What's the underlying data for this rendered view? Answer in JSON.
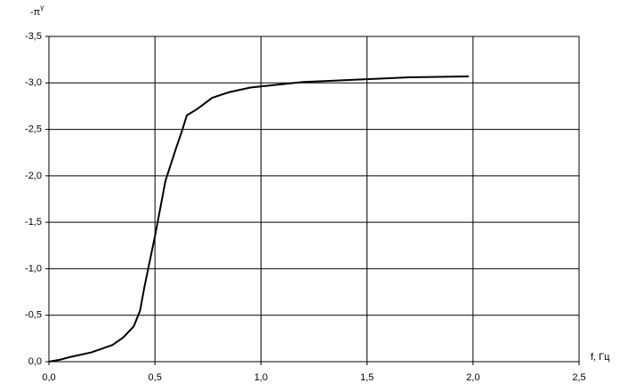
{
  "chart_data": {
    "type": "line",
    "ylabel": "-π",
    "ylabel_superscript": "γ",
    "xlabel": "f, Гц",
    "x": [
      0,
      0.05,
      0.1,
      0.2,
      0.3,
      0.35,
      0.4,
      0.43,
      0.45,
      0.5,
      0.55,
      0.6,
      0.63,
      0.65,
      0.7,
      0.77,
      0.85,
      0.95,
      1.2,
      1.5,
      1.7,
      1.98
    ],
    "series": [
      {
        "color": "#000000",
        "values": [
          0,
          -0.02,
          -0.05,
          -0.1,
          -0.18,
          -0.26,
          -0.38,
          -0.55,
          -0.8,
          -1.35,
          -1.95,
          -2.3,
          -2.5,
          -2.65,
          -2.72,
          -2.84,
          -2.9,
          -2.95,
          -3.01,
          -3.04,
          -3.06,
          -3.07
        ]
      }
    ],
    "xlim": [
      0,
      2.5
    ],
    "ylim": [
      0,
      -3.5
    ],
    "xticks": [
      {
        "value": 0,
        "label": "0,0"
      },
      {
        "value": 0.5,
        "label": "0,5"
      },
      {
        "value": 1,
        "label": "1,0"
      },
      {
        "value": 1.5,
        "label": "1,5"
      },
      {
        "value": 2,
        "label": "2,0"
      },
      {
        "value": 2.5,
        "label": "2,5"
      }
    ],
    "yticks": [
      {
        "value": 0,
        "label": "0,0"
      },
      {
        "value": -0.5,
        "label": "-0,5"
      },
      {
        "value": -1,
        "label": "-1,0"
      },
      {
        "value": -1.5,
        "label": "-1,5"
      },
      {
        "value": -2,
        "label": "-2,0"
      },
      {
        "value": -2.5,
        "label": "-2,5"
      },
      {
        "value": -3,
        "label": "-3,0"
      },
      {
        "value": -3.5,
        "label": "-3,5"
      }
    ],
    "grid": true
  }
}
